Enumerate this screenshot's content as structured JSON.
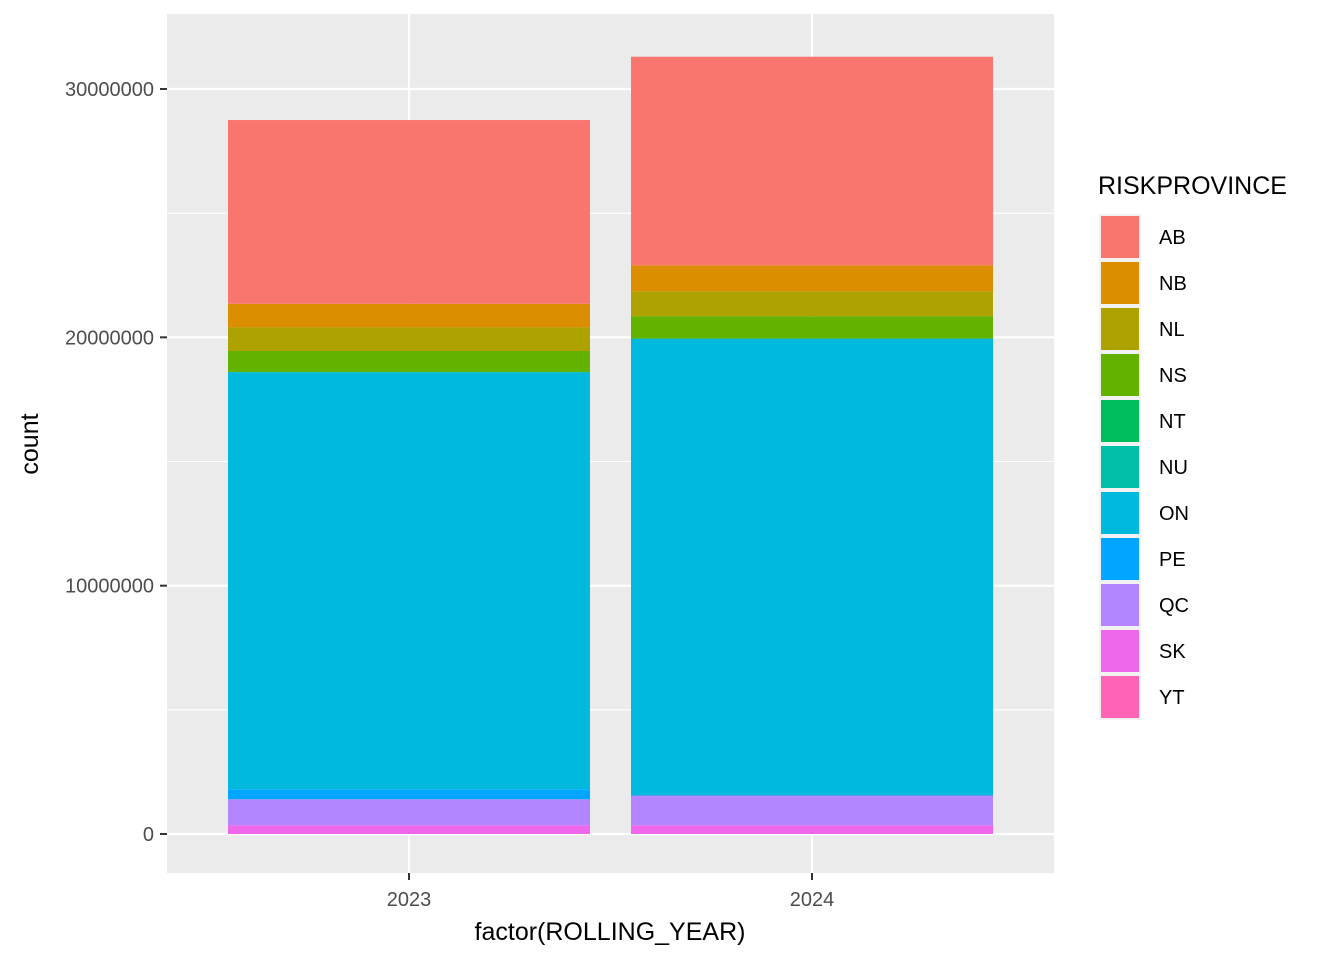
{
  "chart_data": {
    "type": "bar",
    "stacked": true,
    "xlabel": "factor(ROLLING_YEAR)",
    "ylabel": "count",
    "categories": [
      "2023",
      "2024"
    ],
    "ylim": [
      -1500000,
      32500000
    ],
    "yticks": [
      0,
      10000000,
      20000000,
      30000000
    ],
    "ytick_labels": [
      "0",
      "10000000",
      "20000000",
      "30000000"
    ],
    "grid": true,
    "legend": {
      "title": "RISKPROVINCE",
      "placement": "right"
    },
    "series": [
      {
        "name": "AB",
        "color": "#F8766D",
        "values": [
          7400000,
          8400000
        ]
      },
      {
        "name": "NB",
        "color": "#DB8E00",
        "values": [
          950000,
          1050000
        ]
      },
      {
        "name": "NL",
        "color": "#AEA200",
        "values": [
          950000,
          1000000
        ]
      },
      {
        "name": "NS",
        "color": "#64B200",
        "values": [
          850000,
          900000
        ]
      },
      {
        "name": "NT",
        "color": "#00BD5C",
        "values": [
          0,
          0
        ]
      },
      {
        "name": "NU",
        "color": "#00C1A7",
        "values": [
          0,
          0
        ]
      },
      {
        "name": "ON",
        "color": "#00BADE",
        "values": [
          16800000,
          18400000
        ]
      },
      {
        "name": "PE",
        "color": "#00A6FF",
        "values": [
          400000,
          0
        ]
      },
      {
        "name": "QC",
        "color": "#B385FF",
        "values": [
          1050000,
          1200000
        ]
      },
      {
        "name": "SK",
        "color": "#EF67EB",
        "values": [
          350000,
          350000
        ]
      },
      {
        "name": "YT",
        "color": "#FF63B6",
        "values": [
          0,
          0
        ]
      }
    ]
  }
}
